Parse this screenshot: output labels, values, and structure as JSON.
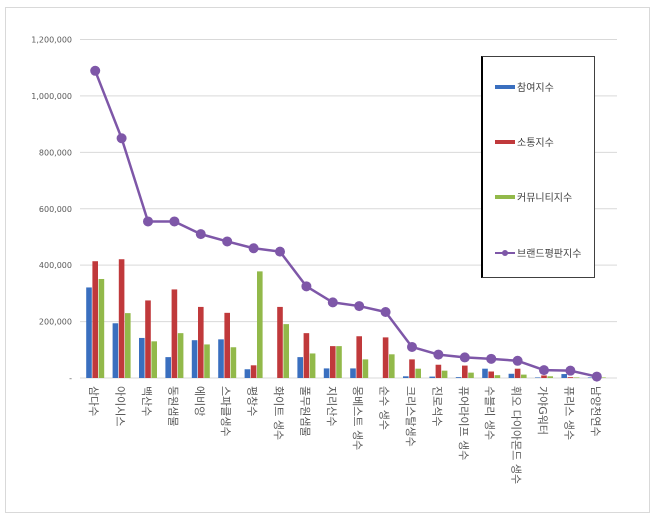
{
  "chart_data": {
    "type": "bar",
    "title": "",
    "xlabel": "",
    "ylabel": "",
    "ylim": [
      0,
      1200000
    ],
    "yticks": [
      0,
      200000,
      400000,
      600000,
      800000,
      1000000,
      1200000
    ],
    "ytick_labels": [
      "-",
      "200,000",
      "400,000",
      "600,000",
      "800,000",
      "1,000,000",
      "1,200,000"
    ],
    "grid": true,
    "legend_position": "right-inside",
    "categories": [
      "삼다수",
      "아이시스",
      "백산수",
      "동원샘물",
      "에비앙",
      "스파클생수",
      "평창수",
      "화이트 생수",
      "풀무원샘물",
      "지리산수",
      "몽베스트 생수",
      "순수 생수",
      "크리스탈생수",
      "진로석수",
      "퓨어라이프 생수",
      "수블리 생수",
      "휘오 다이아몬드 생수",
      "가야G워터",
      "퓨리스 생수",
      "남양천연수"
    ],
    "series": [
      {
        "name": "참여지수",
        "type": "bar",
        "color": "#3a6fbf",
        "values": [
          321000,
          194000,
          142000,
          74000,
          134000,
          137000,
          31000,
          0,
          74000,
          34000,
          34000,
          0,
          6000,
          5000,
          3000,
          33000,
          15000,
          2000,
          14000,
          2000
        ]
      },
      {
        "name": "소통지수",
        "type": "bar",
        "color": "#c0393b",
        "values": [
          414000,
          421000,
          275000,
          314000,
          252000,
          231000,
          45000,
          252000,
          159000,
          113000,
          148000,
          144000,
          66000,
          47000,
          44000,
          23000,
          33000,
          9000,
          3000,
          2000
        ]
      },
      {
        "name": "커뮤니티지수",
        "type": "bar",
        "color": "#92b94a",
        "values": [
          351000,
          230000,
          130000,
          159000,
          119000,
          109000,
          378000,
          191000,
          87000,
          113000,
          66000,
          84000,
          33000,
          26000,
          19000,
          10000,
          12000,
          6000,
          2000,
          2000
        ]
      },
      {
        "name": "브랜드평판지수",
        "type": "line",
        "color": "#7e57a8",
        "values": [
          1089000,
          850000,
          555000,
          555000,
          510000,
          484000,
          460000,
          448000,
          325000,
          268000,
          255000,
          234000,
          110000,
          83000,
          73000,
          68000,
          61000,
          28000,
          26000,
          5000
        ]
      }
    ]
  },
  "legend": {
    "items": [
      {
        "label": "참여지수",
        "color": "#3a6fbf",
        "kind": "bar"
      },
      {
        "label": "소통지수",
        "color": "#c0393b",
        "kind": "bar"
      },
      {
        "label": "커뮤니티지수",
        "color": "#92b94a",
        "kind": "bar"
      },
      {
        "label": "브랜드평판지수",
        "color": "#7e57a8",
        "kind": "line"
      }
    ]
  }
}
